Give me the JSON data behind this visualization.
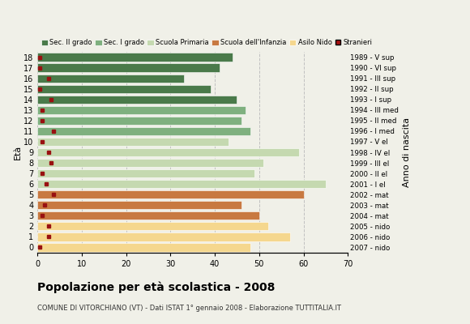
{
  "ages": [
    18,
    17,
    16,
    15,
    14,
    13,
    12,
    11,
    10,
    9,
    8,
    7,
    6,
    5,
    4,
    3,
    2,
    1,
    0
  ],
  "years": [
    "1989 - V sup",
    "1990 - VI sup",
    "1991 - III sup",
    "1992 - II sup",
    "1993 - I sup",
    "1994 - III med",
    "1995 - II med",
    "1996 - I med",
    "1997 - V el",
    "1998 - IV el",
    "1999 - III el",
    "2000 - II el",
    "2001 - I el",
    "2002 - mat",
    "2003 - mat",
    "2004 - mat",
    "2005 - nido",
    "2006 - nido",
    "2007 - nido"
  ],
  "values": [
    44,
    41,
    33,
    39,
    45,
    47,
    46,
    48,
    43,
    59,
    51,
    49,
    65,
    60,
    46,
    50,
    52,
    57,
    48
  ],
  "stranieri": [
    0.5,
    0.5,
    2.5,
    0.5,
    3,
    1,
    1,
    3.5,
    1,
    2.5,
    3,
    1,
    2,
    3.5,
    1.5,
    1,
    2.5,
    2.5,
    0.5
  ],
  "bar_colors": [
    "#4a7a4a",
    "#4a7a4a",
    "#4a7a4a",
    "#4a7a4a",
    "#4a7a4a",
    "#7fb07f",
    "#7fb07f",
    "#7fb07f",
    "#c5d9b0",
    "#c5d9b0",
    "#c5d9b0",
    "#c5d9b0",
    "#c5d9b0",
    "#c87941",
    "#c87941",
    "#c87941",
    "#f5d78e",
    "#f5d78e",
    "#f5d78e"
  ],
  "legend_labels": [
    "Sec. II grado",
    "Sec. I grado",
    "Scuola Primaria",
    "Scuola dell'Infanzia",
    "Asilo Nido",
    "Stranieri"
  ],
  "legend_colors": [
    "#4a7a4a",
    "#7fb07f",
    "#c5d9b0",
    "#c87941",
    "#f5d78e",
    "#aa1111"
  ],
  "title": "Popolazione per età scolastica - 2008",
  "subtitle": "COMUNE DI VITORCHIANO (VT) - Dati ISTAT 1° gennaio 2008 - Elaborazione TUTTITALIA.IT",
  "ylabel_left": "Età",
  "ylabel_right": "Anno di nascita",
  "xlim": [
    0,
    70
  ],
  "xticks": [
    0,
    10,
    20,
    30,
    40,
    50,
    60,
    70
  ],
  "background_color": "#f0f0e8",
  "grid_color": "#c0c0c0",
  "stranieri_color": "#991111",
  "bar_height": 0.78
}
